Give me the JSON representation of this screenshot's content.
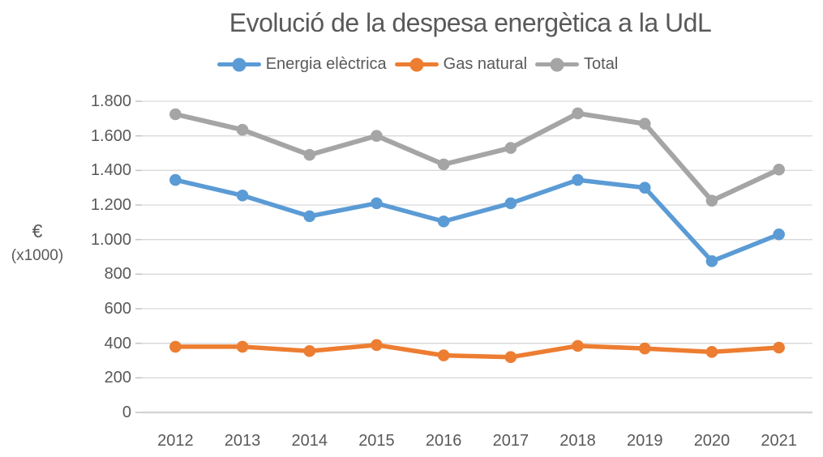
{
  "chart_data": {
    "type": "line",
    "title": "Evolució de la despesa energètica a la UdL",
    "categories": [
      "2012",
      "2013",
      "2014",
      "2015",
      "2016",
      "2017",
      "2018",
      "2019",
      "2020",
      "2021"
    ],
    "series": [
      {
        "name": "Energia elèctrica",
        "color": "#5B9BD5",
        "values": [
          1345,
          1255,
          1135,
          1210,
          1105,
          1210,
          1345,
          1300,
          875,
          1030
        ]
      },
      {
        "name": "Gas natural",
        "color": "#ED7D31",
        "values": [
          380,
          380,
          355,
          390,
          330,
          320,
          385,
          370,
          350,
          375
        ]
      },
      {
        "name": "Total",
        "color": "#A5A5A5",
        "values": [
          1725,
          1635,
          1490,
          1600,
          1435,
          1530,
          1730,
          1670,
          1225,
          1405
        ]
      }
    ],
    "ylabel_unit": "€",
    "ylabel_scale": "(x1000)",
    "ylim": [
      0,
      1800
    ],
    "y_ticks": [
      {
        "value": 0,
        "label": "0"
      },
      {
        "value": 200,
        "label": "200"
      },
      {
        "value": 400,
        "label": "400"
      },
      {
        "value": 600,
        "label": "600"
      },
      {
        "value": 800,
        "label": "800"
      },
      {
        "value": 1000,
        "label": "1.000"
      },
      {
        "value": 1200,
        "label": "1.200"
      },
      {
        "value": 1400,
        "label": "1.400"
      },
      {
        "value": 1600,
        "label": "1.600"
      },
      {
        "value": 1800,
        "label": "1.800"
      }
    ],
    "grid": true,
    "legend_position": "top"
  },
  "colors": {
    "grid": "#D9D9D9",
    "axis_line": "#D4D4D4",
    "tick_mark": "#C6C6C6",
    "text": "#595959"
  }
}
